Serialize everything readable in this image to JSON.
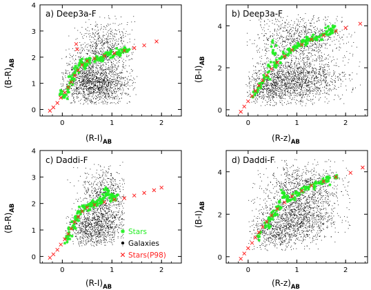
{
  "colors": {
    "stars": "#22ee22",
    "galaxies": "#000000",
    "p98": "#ff2020"
  },
  "chart_data": [
    {
      "type": "scatter",
      "title": "a) Deep3a-F",
      "xlabel": "(R-I)",
      "xlabel_sub": "AB",
      "ylabel": "(B-R)",
      "ylabel_sub": "AB",
      "xlim": [
        -0.45,
        2.4
      ],
      "ylim": [
        -0.25,
        4.0
      ],
      "xticks": [
        {
          "value": 0,
          "label": "0"
        },
        {
          "value": 1,
          "label": "1"
        },
        {
          "value": 2,
          "label": "2"
        }
      ],
      "yticks": [
        {
          "value": 0,
          "label": "0"
        },
        {
          "value": 1,
          "label": "1"
        },
        {
          "value": 2,
          "label": "2"
        },
        {
          "value": 3,
          "label": "3"
        },
        {
          "value": 4,
          "label": "4"
        }
      ],
      "galaxies": {
        "count": 2300,
        "clumps": [
          {
            "cx": 0.75,
            "cy": 0.9,
            "sx": 0.32,
            "sy": 0.38,
            "w": 0.45
          },
          {
            "cx": 0.85,
            "cy": 2.3,
            "sx": 0.28,
            "sy": 0.55,
            "w": 0.3
          },
          {
            "cx": 0.45,
            "cy": 1.2,
            "sx": 0.25,
            "sy": 0.45,
            "w": 0.25
          }
        ],
        "xrange": [
          -0.05,
          1.5
        ],
        "yrange": [
          0.2,
          3.7
        ]
      },
      "p98": [
        {
          "x": -0.25,
          "y": -0.05
        },
        {
          "x": -0.18,
          "y": 0.08
        },
        {
          "x": -0.1,
          "y": 0.25
        },
        {
          "x": -0.03,
          "y": 0.45
        },
        {
          "x": 0.05,
          "y": 0.65
        },
        {
          "x": 0.12,
          "y": 0.85
        },
        {
          "x": 0.18,
          "y": 1.05
        },
        {
          "x": 0.25,
          "y": 1.3
        },
        {
          "x": 0.32,
          "y": 1.5
        },
        {
          "x": 0.4,
          "y": 1.7
        },
        {
          "x": 0.5,
          "y": 1.85
        },
        {
          "x": 0.65,
          "y": 1.95
        },
        {
          "x": 0.85,
          "y": 2.05
        },
        {
          "x": 1.05,
          "y": 2.15
        },
        {
          "x": 1.25,
          "y": 2.25
        },
        {
          "x": 1.45,
          "y": 2.35
        },
        {
          "x": 1.65,
          "y": 2.45
        },
        {
          "x": 1.9,
          "y": 2.6
        },
        {
          "x": 0.3,
          "y": 2.3
        },
        {
          "x": 0.28,
          "y": 2.5
        }
      ],
      "stars": [
        {
          "x": 0.05,
          "y": 0.5
        },
        {
          "x": 0.1,
          "y": 0.8
        },
        {
          "x": 0.15,
          "y": 1.0
        },
        {
          "x": 0.2,
          "y": 1.2
        },
        {
          "x": 0.25,
          "y": 1.4
        },
        {
          "x": 0.3,
          "y": 1.6
        },
        {
          "x": 0.38,
          "y": 1.8
        },
        {
          "x": 0.5,
          "y": 1.9
        },
        {
          "x": 0.65,
          "y": 1.95
        },
        {
          "x": 0.8,
          "y": 2.0
        },
        {
          "x": 0.95,
          "y": 2.1
        },
        {
          "x": 1.1,
          "y": 2.15
        },
        {
          "x": 1.25,
          "y": 2.25
        },
        {
          "x": 1.35,
          "y": 2.3
        },
        {
          "x": -0.05,
          "y": 0.55
        },
        {
          "x": 0.45,
          "y": 1.6
        }
      ],
      "stars_count": 140
    },
    {
      "type": "scatter",
      "title": "b) Deep3a-F",
      "xlabel": "(R-z)",
      "xlabel_sub": "AB",
      "ylabel": "(B-I)",
      "ylabel_sub": "AB",
      "xlim": [
        -0.45,
        2.45
      ],
      "ylim": [
        -0.3,
        5.0
      ],
      "xticks": [
        {
          "value": 0,
          "label": "0"
        },
        {
          "value": 1,
          "label": "1"
        },
        {
          "value": 2,
          "label": "2"
        }
      ],
      "yticks": [
        {
          "value": 0,
          "label": "0"
        },
        {
          "value": 2,
          "label": "2"
        },
        {
          "value": 4,
          "label": "4"
        }
      ],
      "galaxies": {
        "count": 2800,
        "clumps": [
          {
            "cx": 1.0,
            "cy": 1.5,
            "sx": 0.45,
            "sy": 0.55,
            "w": 0.55
          },
          {
            "cx": 1.1,
            "cy": 3.4,
            "sx": 0.45,
            "sy": 0.55,
            "w": 0.3
          },
          {
            "cx": 0.45,
            "cy": 1.0,
            "sx": 0.25,
            "sy": 0.35,
            "w": 0.15
          }
        ],
        "xrange": [
          -0.05,
          2.3
        ],
        "yrange": [
          0.2,
          4.6
        ]
      },
      "p98": [
        {
          "x": -0.15,
          "y": -0.1
        },
        {
          "x": -0.08,
          "y": 0.15
        },
        {
          "x": 0.0,
          "y": 0.4
        },
        {
          "x": 0.08,
          "y": 0.65
        },
        {
          "x": 0.15,
          "y": 0.9
        },
        {
          "x": 0.22,
          "y": 1.15
        },
        {
          "x": 0.3,
          "y": 1.4
        },
        {
          "x": 0.38,
          "y": 1.65
        },
        {
          "x": 0.48,
          "y": 1.95
        },
        {
          "x": 0.6,
          "y": 2.25
        },
        {
          "x": 0.75,
          "y": 2.55
        },
        {
          "x": 0.9,
          "y": 2.85
        },
        {
          "x": 1.1,
          "y": 3.1
        },
        {
          "x": 1.3,
          "y": 3.35
        },
        {
          "x": 1.55,
          "y": 3.55
        },
        {
          "x": 1.8,
          "y": 3.75
        },
        {
          "x": 2.0,
          "y": 3.9
        },
        {
          "x": 2.3,
          "y": 4.1
        }
      ],
      "stars": [
        {
          "x": 0.1,
          "y": 0.6
        },
        {
          "x": 0.2,
          "y": 0.95
        },
        {
          "x": 0.3,
          "y": 1.3
        },
        {
          "x": 0.4,
          "y": 1.6
        },
        {
          "x": 0.55,
          "y": 2.1
        },
        {
          "x": 0.7,
          "y": 2.5
        },
        {
          "x": 0.85,
          "y": 2.8
        },
        {
          "x": 1.0,
          "y": 3.0
        },
        {
          "x": 1.2,
          "y": 3.25
        },
        {
          "x": 1.4,
          "y": 3.45
        },
        {
          "x": 1.6,
          "y": 3.6
        },
        {
          "x": 1.8,
          "y": 3.75
        },
        {
          "x": 0.5,
          "y": 3.2
        },
        {
          "x": 1.7,
          "y": 3.85
        }
      ],
      "stars_count": 140
    },
    {
      "type": "scatter",
      "title": "c) Daddi-F",
      "xlabel": "(R-I)",
      "xlabel_sub": "AB",
      "ylabel": "(B-R)",
      "ylabel_sub": "AB",
      "xlim": [
        -0.45,
        2.4
      ],
      "ylim": [
        -0.25,
        4.0
      ],
      "xticks": [
        {
          "value": 0,
          "label": "0"
        },
        {
          "value": 1,
          "label": "1"
        },
        {
          "value": 2,
          "label": "2"
        }
      ],
      "yticks": [
        {
          "value": 0,
          "label": "0"
        },
        {
          "value": 1,
          "label": "1"
        },
        {
          "value": 2,
          "label": "2"
        },
        {
          "value": 3,
          "label": "3"
        },
        {
          "value": 4,
          "label": "4"
        }
      ],
      "galaxies": {
        "count": 1700,
        "clumps": [
          {
            "cx": 0.75,
            "cy": 1.2,
            "sx": 0.28,
            "sy": 0.42,
            "w": 0.45
          },
          {
            "cx": 0.85,
            "cy": 2.4,
            "sx": 0.25,
            "sy": 0.5,
            "w": 0.35
          },
          {
            "cx": 0.5,
            "cy": 1.0,
            "sx": 0.2,
            "sy": 0.35,
            "w": 0.2
          }
        ],
        "xrange": [
          0.05,
          1.25
        ],
        "yrange": [
          0.4,
          3.6
        ]
      },
      "p98": [
        {
          "x": -0.25,
          "y": -0.05
        },
        {
          "x": -0.18,
          "y": 0.08
        },
        {
          "x": -0.1,
          "y": 0.25
        },
        {
          "x": -0.03,
          "y": 0.45
        },
        {
          "x": 0.05,
          "y": 0.65
        },
        {
          "x": 0.12,
          "y": 0.85
        },
        {
          "x": 0.18,
          "y": 1.05
        },
        {
          "x": 0.25,
          "y": 1.3
        },
        {
          "x": 0.32,
          "y": 1.5
        },
        {
          "x": 0.4,
          "y": 1.7
        },
        {
          "x": 0.5,
          "y": 1.85
        },
        {
          "x": 0.65,
          "y": 1.95
        },
        {
          "x": 0.85,
          "y": 2.05
        },
        {
          "x": 1.05,
          "y": 2.15
        },
        {
          "x": 1.25,
          "y": 2.2
        },
        {
          "x": 1.45,
          "y": 2.3
        },
        {
          "x": 1.65,
          "y": 2.4
        },
        {
          "x": 1.85,
          "y": 2.5
        },
        {
          "x": 2.0,
          "y": 2.6
        }
      ],
      "stars": [
        {
          "x": 0.05,
          "y": 0.5
        },
        {
          "x": 0.12,
          "y": 0.8
        },
        {
          "x": 0.2,
          "y": 1.1
        },
        {
          "x": 0.28,
          "y": 1.4
        },
        {
          "x": 0.36,
          "y": 1.7
        },
        {
          "x": 0.5,
          "y": 1.9
        },
        {
          "x": 0.65,
          "y": 2.0
        },
        {
          "x": 0.8,
          "y": 2.1
        },
        {
          "x": 0.95,
          "y": 2.2
        },
        {
          "x": 1.1,
          "y": 2.3
        },
        {
          "x": 0.9,
          "y": 2.5
        }
      ],
      "stars_count": 120
    },
    {
      "type": "scatter",
      "title": "d) Daddi-F",
      "xlabel": "(R-z)",
      "xlabel_sub": "AB",
      "ylabel": "(B-I)",
      "ylabel_sub": "AB",
      "xlim": [
        -0.45,
        2.45
      ],
      "ylim": [
        -0.3,
        5.0
      ],
      "xticks": [
        {
          "value": 0,
          "label": "0"
        },
        {
          "value": 1,
          "label": "1"
        },
        {
          "value": 2,
          "label": "2"
        }
      ],
      "yticks": [
        {
          "value": 0,
          "label": "0"
        },
        {
          "value": 2,
          "label": "2"
        },
        {
          "value": 4,
          "label": "4"
        }
      ],
      "galaxies": {
        "count": 2400,
        "clumps": [
          {
            "cx": 1.0,
            "cy": 1.8,
            "sx": 0.4,
            "sy": 0.55,
            "w": 0.5
          },
          {
            "cx": 1.15,
            "cy": 3.4,
            "sx": 0.4,
            "sy": 0.6,
            "w": 0.35
          },
          {
            "cx": 0.55,
            "cy": 1.1,
            "sx": 0.25,
            "sy": 0.35,
            "w": 0.15
          }
        ],
        "xrange": [
          0.0,
          2.1
        ],
        "yrange": [
          0.3,
          4.6
        ]
      },
      "p98": [
        {
          "x": -0.15,
          "y": -0.1
        },
        {
          "x": -0.08,
          "y": 0.15
        },
        {
          "x": 0.0,
          "y": 0.4
        },
        {
          "x": 0.08,
          "y": 0.65
        },
        {
          "x": 0.15,
          "y": 0.9
        },
        {
          "x": 0.22,
          "y": 1.15
        },
        {
          "x": 0.3,
          "y": 1.4
        },
        {
          "x": 0.38,
          "y": 1.65
        },
        {
          "x": 0.48,
          "y": 1.95
        },
        {
          "x": 0.6,
          "y": 2.25
        },
        {
          "x": 0.75,
          "y": 2.55
        },
        {
          "x": 0.9,
          "y": 2.85
        },
        {
          "x": 1.1,
          "y": 3.1
        },
        {
          "x": 1.3,
          "y": 3.35
        },
        {
          "x": 1.55,
          "y": 3.55
        },
        {
          "x": 1.8,
          "y": 3.75
        },
        {
          "x": 2.1,
          "y": 3.95
        },
        {
          "x": 2.35,
          "y": 4.2
        }
      ],
      "stars": [
        {
          "x": 0.2,
          "y": 0.95
        },
        {
          "x": 0.35,
          "y": 1.45
        },
        {
          "x": 0.5,
          "y": 1.9
        },
        {
          "x": 0.65,
          "y": 2.35
        },
        {
          "x": 0.8,
          "y": 2.7
        },
        {
          "x": 1.0,
          "y": 3.0
        },
        {
          "x": 1.2,
          "y": 3.25
        },
        {
          "x": 1.4,
          "y": 3.45
        },
        {
          "x": 1.6,
          "y": 3.6
        },
        {
          "x": 1.8,
          "y": 3.75
        },
        {
          "x": 0.7,
          "y": 3.0
        }
      ],
      "stars_count": 120
    }
  ],
  "legend": {
    "items": [
      {
        "label": "Stars",
        "color": "#22ee22",
        "symbol": "star"
      },
      {
        "label": "Galaxies",
        "color": "#000000",
        "symbol": "dot"
      },
      {
        "label": "Stars(P98)",
        "color": "#ff2020",
        "symbol": "cross"
      }
    ]
  }
}
